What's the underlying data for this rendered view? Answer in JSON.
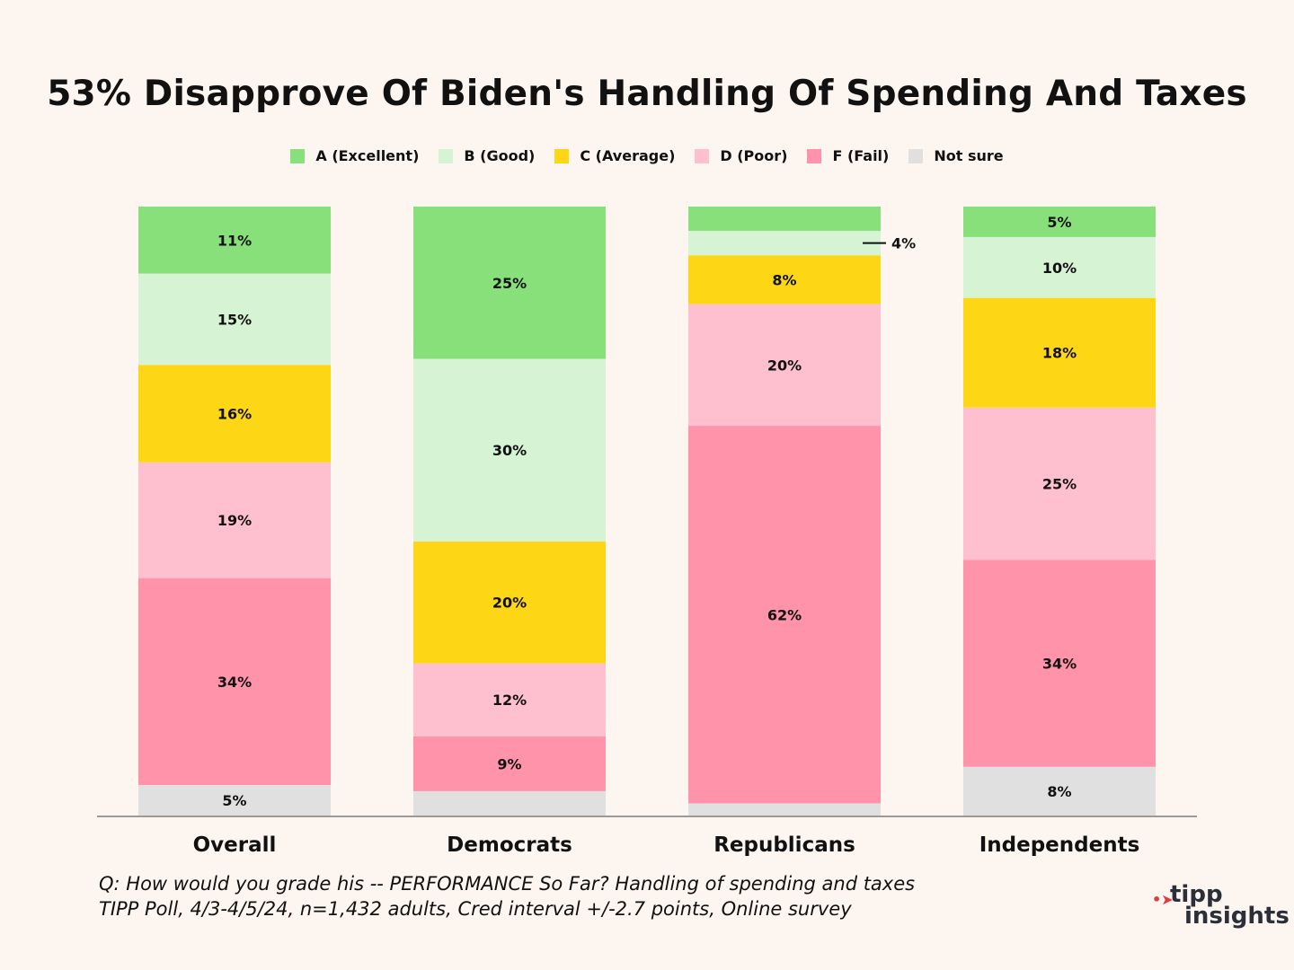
{
  "chart_data": {
    "type": "bar",
    "stacked": true,
    "title": "53% Disapprove Of Biden's Handling Of Spending And Taxes",
    "categories": [
      "Overall",
      "Democrats",
      "Republicans",
      "Independents"
    ],
    "series": [
      {
        "name": "A (Excellent)",
        "color": "#88e07b",
        "values": [
          11,
          25,
          4,
          5
        ],
        "labels": [
          "11%",
          "25%",
          "",
          "5%"
        ]
      },
      {
        "name": "B (Good)",
        "color": "#d6f3d4",
        "values": [
          15,
          30,
          4,
          10
        ],
        "labels": [
          "15%",
          "30%",
          "",
          "10%"
        ]
      },
      {
        "name": "C (Average)",
        "color": "#fdd716",
        "values": [
          16,
          20,
          8,
          18
        ],
        "labels": [
          "16%",
          "20%",
          "8%",
          "18%"
        ]
      },
      {
        "name": "D (Poor)",
        "color": "#fec0cf",
        "values": [
          19,
          12,
          20,
          25
        ],
        "labels": [
          "19%",
          "12%",
          "20%",
          "25%"
        ]
      },
      {
        "name": "F (Fail)",
        "color": "#fe93aa",
        "values": [
          34,
          9,
          62,
          34
        ],
        "labels": [
          "34%",
          "9%",
          "62%",
          "34%"
        ]
      },
      {
        "name": "Not sure",
        "color": "#e0e0e0",
        "values": [
          5,
          4,
          2,
          8
        ],
        "labels": [
          "5%",
          "",
          "",
          "8%"
        ]
      }
    ],
    "callout": {
      "category": "Republicans",
      "series": "B (Good)",
      "label": "4%"
    },
    "ylim": [
      0,
      100
    ],
    "legend": "top-center",
    "grid": false,
    "xlabel": "",
    "ylabel": ""
  },
  "footnote": {
    "line1": "Q:  How would you grade his -- PERFORMANCE So Far? Handling  of spending and taxes",
    "line2": "TIPP Poll, 4/3-4/5/24, n=1,432 adults, Cred interval +/-2.7 points, Online survey"
  },
  "logo": {
    "arrow": "•➤",
    "word1": "tipp",
    "word2": "insights"
  }
}
